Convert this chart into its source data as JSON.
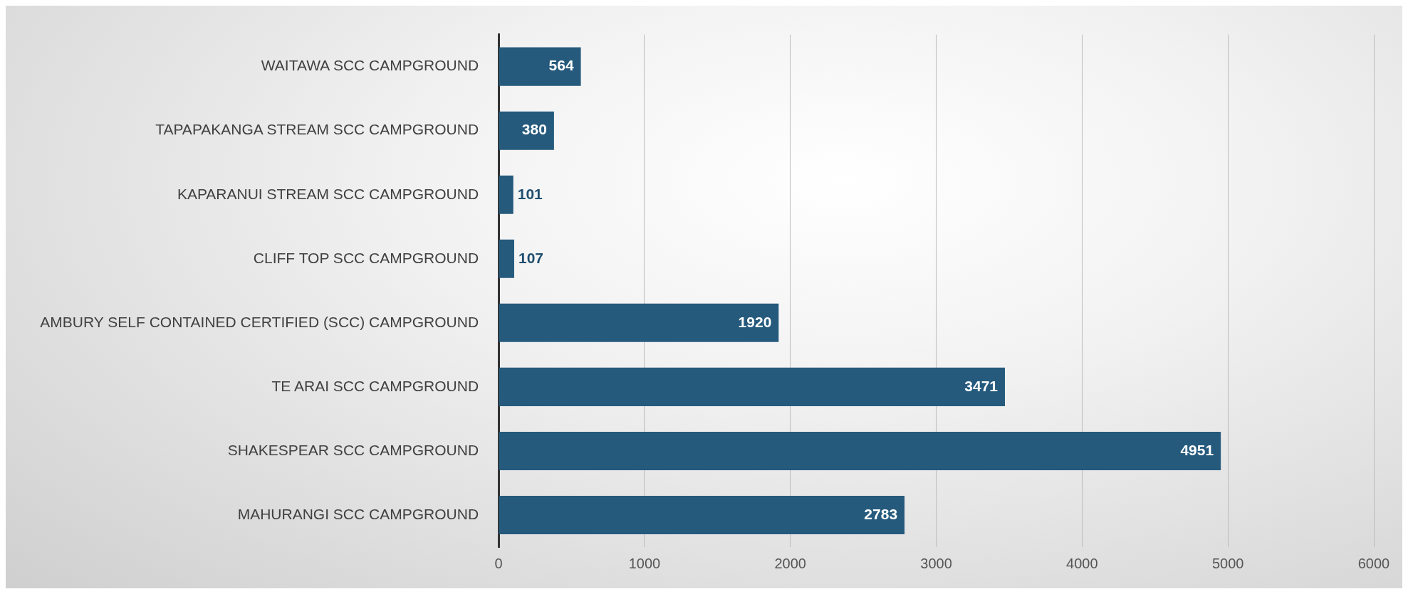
{
  "chart_data": {
    "type": "bar",
    "orientation": "horizontal",
    "categories": [
      "WAITAWA SCC CAMPGROUND",
      "TAPAPAKANGA STREAM SCC CAMPGROUND",
      "KAPARANUI STREAM SCC CAMPGROUND",
      "CLIFF TOP SCC CAMPGROUND",
      "AMBURY SELF CONTAINED CERTIFIED (SCC) CAMPGROUND",
      "TE ARAI SCC CAMPGROUND",
      "SHAKESPEAR SCC CAMPGROUND",
      "MAHURANGI SCC CAMPGROUND"
    ],
    "values": [
      564,
      380,
      101,
      107,
      1920,
      3471,
      4951,
      2783
    ],
    "color": "#255a7d",
    "xlim": [
      0,
      6000
    ],
    "xticks": [
      0,
      1000,
      2000,
      3000,
      4000,
      5000,
      6000
    ],
    "grid": "x",
    "data_labels": true,
    "legend": false
  }
}
